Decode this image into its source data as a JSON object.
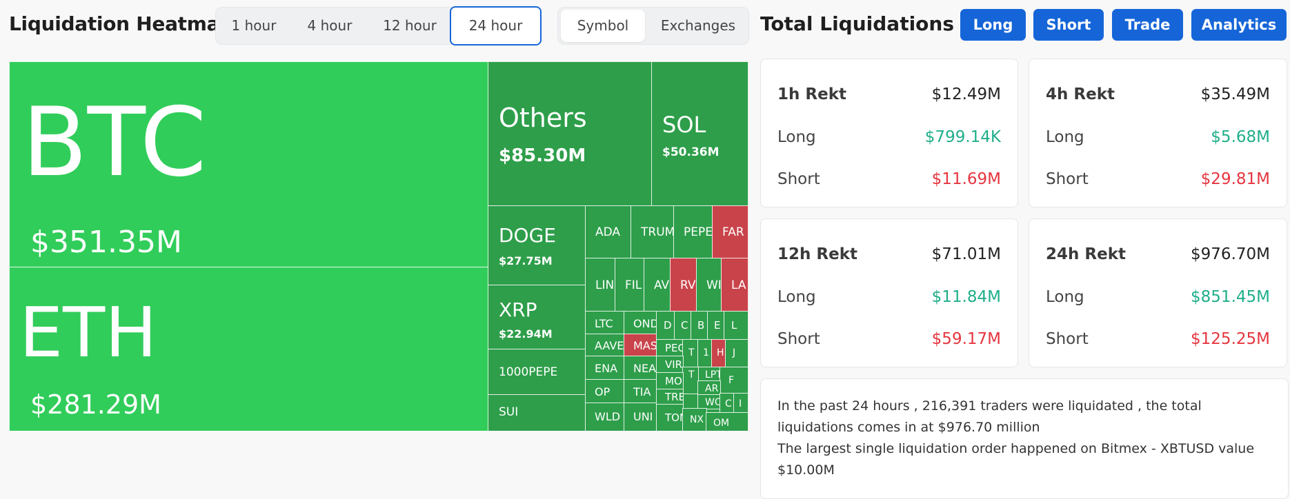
{
  "heatmap": {
    "title": "Liquidation Heatmap",
    "time_tabs": [
      "1 hour",
      "4 hour",
      "12 hour",
      "24 hour"
    ],
    "active_time_tab": "24 hour",
    "view_tabs": [
      "Symbol",
      "Exchanges"
    ],
    "active_view_tab": "Symbol",
    "tiles": [
      {
        "symbol": "BTC",
        "value": "$351.35M",
        "color": "bright"
      },
      {
        "symbol": "ETH",
        "value": "$281.29M",
        "color": "bright"
      },
      {
        "symbol": "Others",
        "value": "$85.30M",
        "color": "green"
      },
      {
        "symbol": "SOL",
        "value": "$50.36M",
        "color": "green"
      },
      {
        "symbol": "DOGE",
        "value": "$27.75M",
        "color": "green"
      },
      {
        "symbol": "XRP",
        "value": "$22.94M",
        "color": "green"
      },
      {
        "symbol": "1000PEPE",
        "value": "",
        "color": "green"
      },
      {
        "symbol": "SUI",
        "value": "",
        "color": "green"
      },
      {
        "symbol": "ADA",
        "value": "",
        "color": "green"
      },
      {
        "symbol": "TRUM",
        "value": "",
        "color": "green"
      },
      {
        "symbol": "PEPE",
        "value": "",
        "color": "green"
      },
      {
        "symbol": "FAR",
        "value": "",
        "color": "red"
      },
      {
        "symbol": "LIN",
        "value": "",
        "color": "green"
      },
      {
        "symbol": "FIL",
        "value": "",
        "color": "green"
      },
      {
        "symbol": "AV",
        "value": "",
        "color": "green"
      },
      {
        "symbol": "RV",
        "value": "",
        "color": "red"
      },
      {
        "symbol": "WI",
        "value": "",
        "color": "green"
      },
      {
        "symbol": "LA",
        "value": "",
        "color": "red"
      },
      {
        "symbol": "LTC",
        "value": "",
        "color": "green"
      },
      {
        "symbol": "OND",
        "value": "",
        "color": "green"
      },
      {
        "symbol": "AAVE",
        "value": "",
        "color": "green"
      },
      {
        "symbol": "MAS",
        "value": "",
        "color": "red"
      },
      {
        "symbol": "ENA",
        "value": "",
        "color": "green"
      },
      {
        "symbol": "NEA",
        "value": "",
        "color": "green"
      },
      {
        "symbol": "OP",
        "value": "",
        "color": "green"
      },
      {
        "symbol": "TIA",
        "value": "",
        "color": "green"
      },
      {
        "symbol": "WLD",
        "value": "",
        "color": "green"
      },
      {
        "symbol": "UNI",
        "value": "",
        "color": "green"
      },
      {
        "symbol": "D",
        "value": "",
        "color": "green"
      },
      {
        "symbol": "C",
        "value": "",
        "color": "green"
      },
      {
        "symbol": "B",
        "value": "",
        "color": "green"
      },
      {
        "symbol": "E",
        "value": "",
        "color": "green"
      },
      {
        "symbol": "L",
        "value": "",
        "color": "green"
      },
      {
        "symbol": "PEO",
        "value": "",
        "color": "green"
      },
      {
        "symbol": "T",
        "value": "",
        "color": "green"
      },
      {
        "symbol": "1",
        "value": "",
        "color": "green"
      },
      {
        "symbol": "H",
        "value": "",
        "color": "red"
      },
      {
        "symbol": "J",
        "value": "",
        "color": "green"
      },
      {
        "symbol": "VIR",
        "value": "",
        "color": "green"
      },
      {
        "symbol": "LPT",
        "value": "",
        "color": "green"
      },
      {
        "symbol": "T",
        "value": "",
        "color": "green"
      },
      {
        "symbol": "F",
        "value": "",
        "color": "green"
      },
      {
        "symbol": "MO",
        "value": "",
        "color": "green"
      },
      {
        "symbol": "AR",
        "value": "",
        "color": "green"
      },
      {
        "symbol": "TRE",
        "value": "",
        "color": "green"
      },
      {
        "symbol": "WO",
        "value": "",
        "color": "green"
      },
      {
        "symbol": "C",
        "value": "",
        "color": "green"
      },
      {
        "symbol": "I",
        "value": "",
        "color": "green"
      },
      {
        "symbol": "TON",
        "value": "",
        "color": "green"
      },
      {
        "symbol": "NX",
        "value": "",
        "color": "green"
      },
      {
        "symbol": "OM",
        "value": "",
        "color": "green"
      }
    ]
  },
  "liquidations": {
    "title": "Total Liquidations",
    "buttons": [
      "Long",
      "Short",
      "Trade",
      "Analytics"
    ],
    "cards": [
      {
        "title": "1h Rekt",
        "total": "$12.49M",
        "long_label": "Long",
        "long": "$799.14K",
        "short_label": "Short",
        "short": "$11.69M"
      },
      {
        "title": "4h Rekt",
        "total": "$35.49M",
        "long_label": "Long",
        "long": "$5.68M",
        "short_label": "Short",
        "short": "$29.81M"
      },
      {
        "title": "12h Rekt",
        "total": "$71.01M",
        "long_label": "Long",
        "long": "$11.84M",
        "short_label": "Short",
        "short": "$59.17M"
      },
      {
        "title": "24h Rekt",
        "total": "$976.70M",
        "long_label": "Long",
        "long": "$851.45M",
        "short_label": "Short",
        "short": "$125.25M"
      }
    ],
    "summary_line1": "In the past 24 hours , 216,391 traders were liquidated , the total liquidations comes in at $976.70 million",
    "summary_line2": "The largest single liquidation order happened on Bitmex - XBTUSD value $10.00M"
  },
  "colors": {
    "accent": "#1565d8",
    "bright_green": "#31cd5a",
    "green": "#2e9e4a",
    "red": "#c9434a",
    "long": "#1fae8a",
    "short": "#e5353f"
  }
}
